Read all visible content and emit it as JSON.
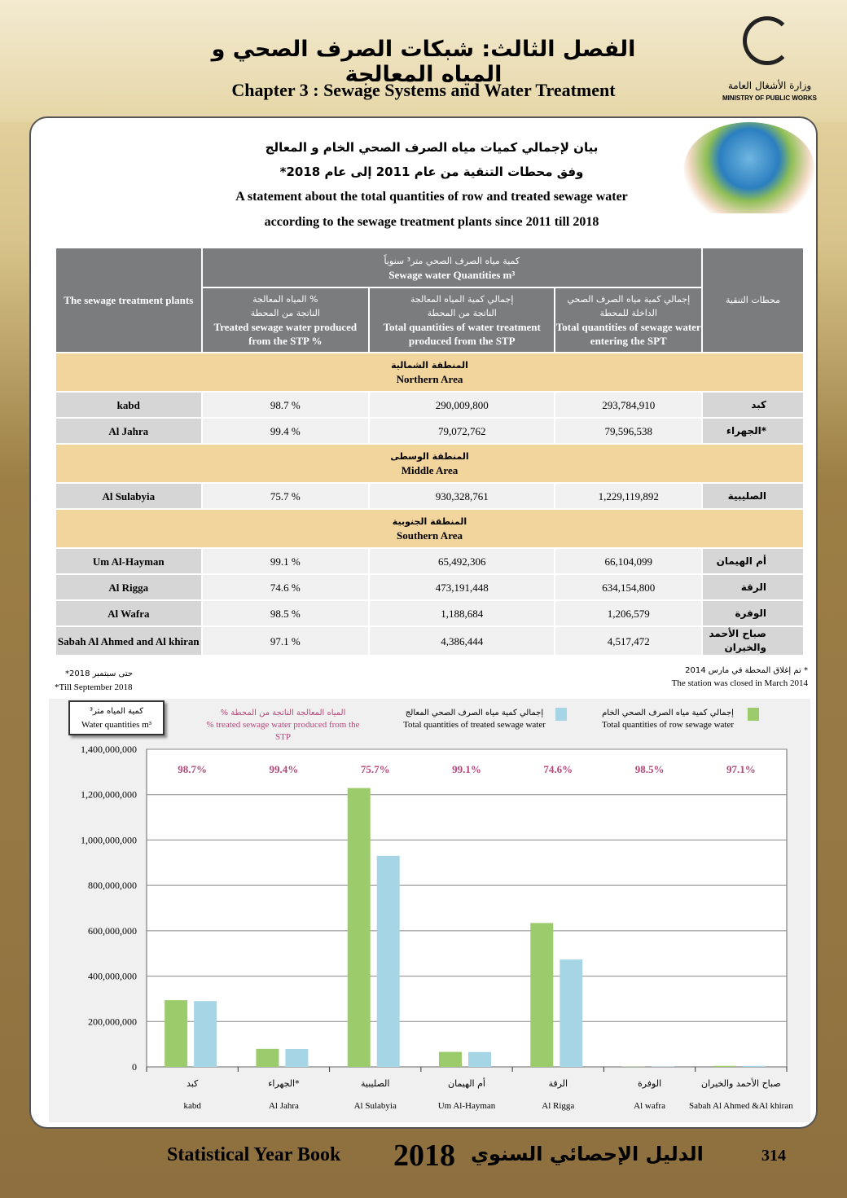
{
  "header": {
    "arabic_title": "الفصل الثالث: شبكات الصرف الصحي و المياه المعالجة",
    "english_title": "Chapter 3 : Sewage Systems and Water Treatment",
    "ministry_ar": "وزارة الأشغال العامة",
    "ministry_en": "MINISTRY OF PUBLIC WORKS"
  },
  "statement": {
    "ar_line1": "بيان لإجمالي كميات مياه الصرف الصحي الخام و المعالج",
    "ar_line2": "وفق محطات التنقية من عام 2011 إلى عام 2018*",
    "en_line1": "A statement about the total quantities of row and treated sewage water",
    "en_line2": "according to the sewage treatment plants since 2011 till  2018"
  },
  "table": {
    "head_plants_en": "The sewage treatment plants",
    "head_plants_ar": "محطات التنقية",
    "head_group_ar": "كمية مياه الصرف الصحي متر³ سنوياً",
    "head_group_en": "Sewage water Quantities m³",
    "col_pct_ar1": "% المياه المعالجة",
    "col_pct_ar2": "الناتجة من المحطة",
    "col_pct_en": "Treated sewage water produced from the STP %",
    "col_treated_ar1": "إجمالي كمية المياه المعالجة",
    "col_treated_ar2": "الناتجة من المحطة",
    "col_treated_en": "Total quantities of water treatment produced from the STP",
    "col_entering_ar1": "إجمالي كمية مياه الصرف الصحي",
    "col_entering_ar2": "الداخلة للمحطة",
    "col_entering_en": "Total quantities of sewage water entering the SPT",
    "sections": [
      {
        "ar": "المنطقة الشمالية",
        "en": "Northern Area",
        "rows": [
          {
            "en": "kabd",
            "pct": "98.7 %",
            "treated": "290,009,800",
            "entering": "293,784,910",
            "ar": "كبد"
          },
          {
            "en": "Al Jahra",
            "pct": "99.4 %",
            "treated": "79,072,762",
            "entering": "79,596,538",
            "ar": "*الجهراء"
          }
        ]
      },
      {
        "ar": "المنطقة الوسطى",
        "en": "Middle Area",
        "rows": [
          {
            "en": "Al Sulabyia",
            "pct": "75.7 %",
            "treated": "930,328,761",
            "entering": "1,229,119,892",
            "ar": "الصليبية"
          }
        ]
      },
      {
        "ar": "المنطقة الجنوبية",
        "en": "Southern Area",
        "rows": [
          {
            "en": "Um Al-Hayman",
            "pct": "99.1 %",
            "treated": "65,492,306",
            "entering": "66,104,099",
            "ar": "أم الهيمان"
          },
          {
            "en": "Al Rigga",
            "pct": "74.6 %",
            "treated": "473,191,448",
            "entering": "634,154,800",
            "ar": "الرقة"
          },
          {
            "en": "Al Wafra",
            "pct": "98.5 %",
            "treated": "1,188,684",
            "entering": "1,206,579",
            "ar": "الوفرة"
          },
          {
            "en": "Sabah Al Ahmed and Al khiran",
            "pct": "97.1 %",
            "treated": "4,386,444",
            "entering": "4,517,472",
            "ar": "صباح الأحمد والخيران"
          }
        ]
      }
    ]
  },
  "notes": {
    "till_ar": "*حتى سبتمبر 2018",
    "till_en": "*Till September 2018",
    "closed_ar": "* تم إغلاق المحطة في مارس 2014",
    "closed_en": "The station was closed in March 2014"
  },
  "chart_data": {
    "type": "bar",
    "ylabel_ar": "كمية المياه متر³",
    "ylabel_en": "Water quantities m³",
    "ylim": [
      0,
      1400000000
    ],
    "yticks": [
      "0",
      "200,000,000",
      "400,000,000",
      "600,000,000",
      "800,000,000",
      "1,000,000,000",
      "1,200,000,000",
      "1,400,000,000"
    ],
    "categories_ar": [
      "كبد",
      "الجهراء*",
      "الصليبية",
      "أم الهيمان",
      "الرقة",
      "الوفرة",
      "صباح الأحمد والخيران"
    ],
    "categories": [
      "kabd",
      "Al Jahra",
      "Al Sulabyia",
      "Um Al-Hayman",
      "Al Rigga",
      "Al wafra",
      "Sabah Al Ahmed &Al khiran"
    ],
    "series": [
      {
        "name": "Total quantities of row sewage water",
        "name_ar": "إجمالي كمية مياه الصرف الصحي الخام",
        "color": "#9ccb6b",
        "values": [
          293784910,
          79596538,
          1229119892,
          66104099,
          634154800,
          1206579,
          4517472
        ]
      },
      {
        "name": "Total quantities of treated sewage water",
        "name_ar": "إجمالي كمية مياه الصرف الصحي المعالج",
        "color": "#a6d6e6",
        "values": [
          290009800,
          79072762,
          930328761,
          65492306,
          473191448,
          1188684,
          4386444
        ]
      }
    ],
    "pct_series": {
      "name": "% treated sewage water produced from the STP",
      "name_ar": "% المياه المعالجة الناتجة من المحطة",
      "color": "#b5487a",
      "labels": [
        "98.7%",
        "99.4%",
        "75.7%",
        "99.1%",
        "74.6%",
        "98.5%",
        "97.1%"
      ]
    }
  },
  "footer": {
    "en": "Statistical Year Book",
    "year": "2018",
    "ar": "الدليل الإحصائي السنوي",
    "page": "314"
  }
}
